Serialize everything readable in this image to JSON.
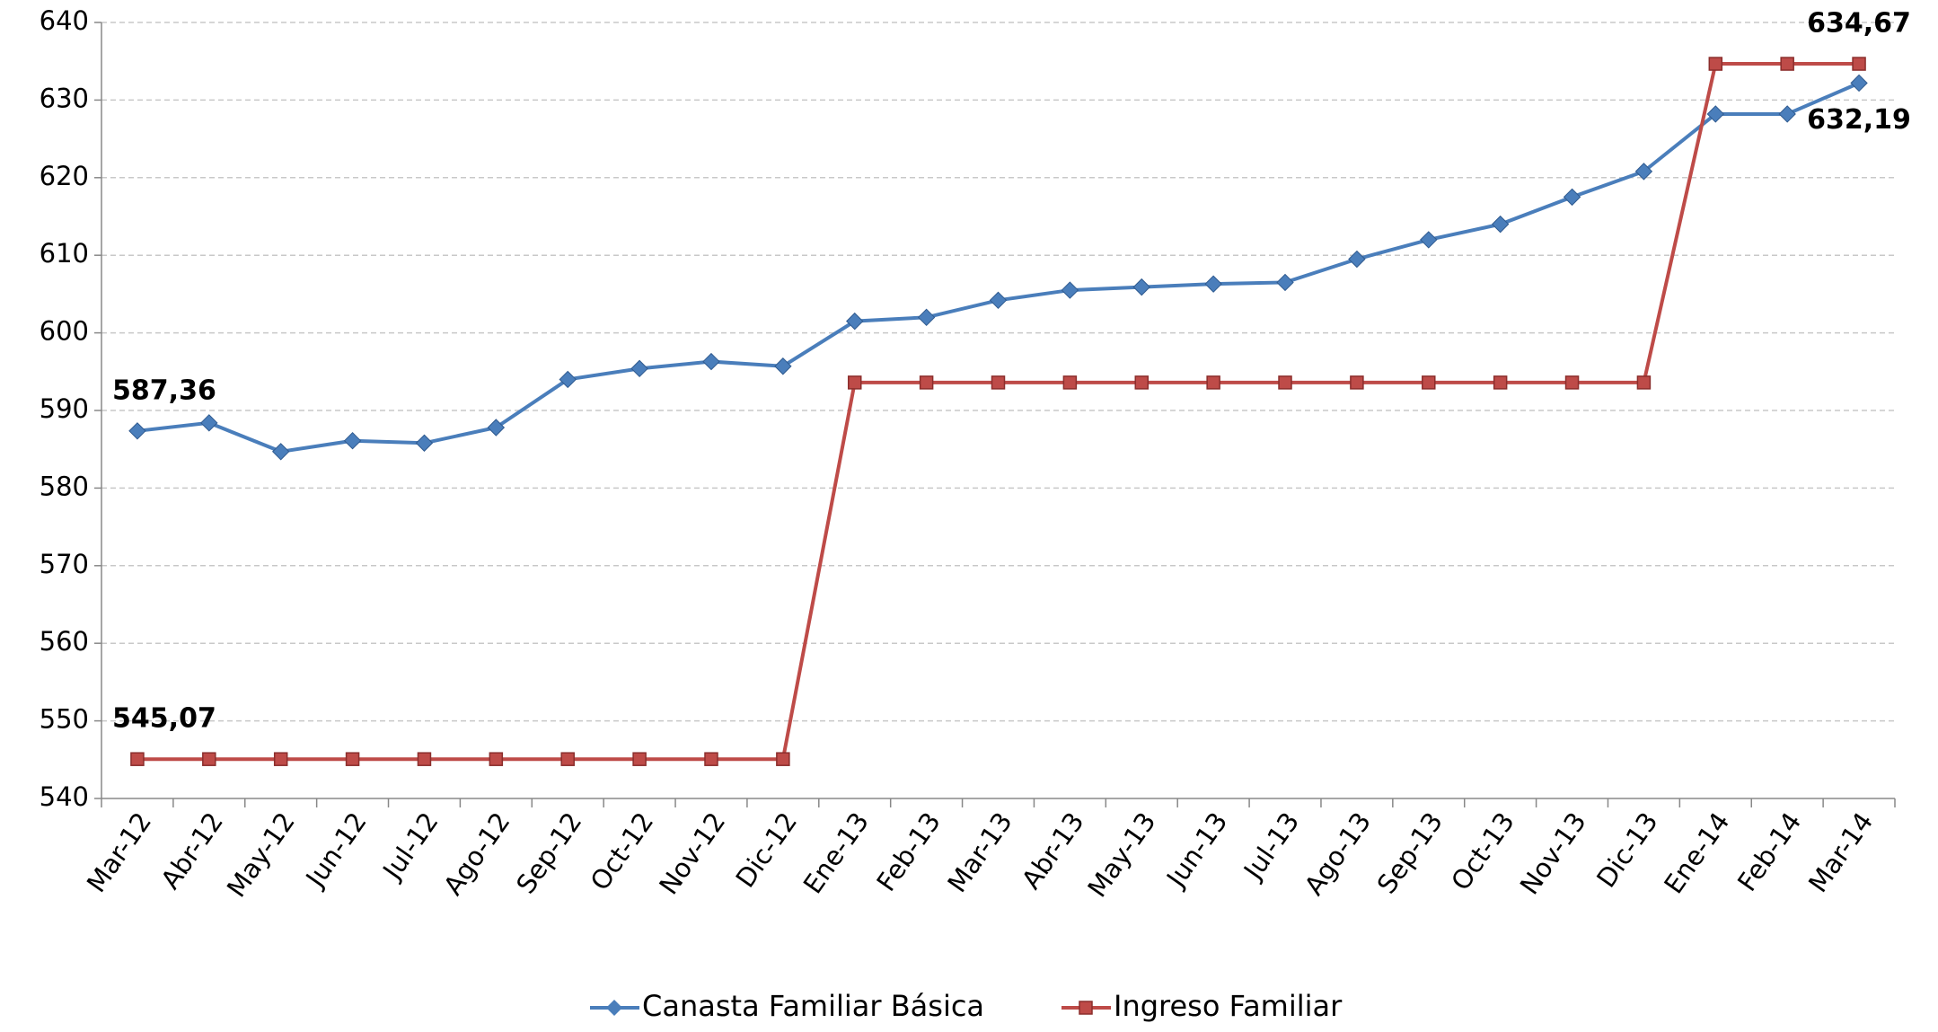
{
  "chart_data": {
    "type": "line",
    "categories": [
      "Mar-12",
      "Abr-12",
      "May-12",
      "Jun-12",
      "Jul-12",
      "Ago-12",
      "Sep-12",
      "Oct-12",
      "Nov-12",
      "Dic-12",
      "Ene-13",
      "Feb-13",
      "Mar-13",
      "Abr-13",
      "May-13",
      "Jun-13",
      "Jul-13",
      "Ago-13",
      "Sep-13",
      "Oct-13",
      "Nov-13",
      "Dic-13",
      "Ene-14",
      "Feb-14",
      "Mar-14"
    ],
    "series": [
      {
        "name": "Canasta Familiar Básica",
        "color": "#4a7ebb",
        "values": [
          587.36,
          588.4,
          584.7,
          586.1,
          585.8,
          587.8,
          594.0,
          595.4,
          596.3,
          595.7,
          601.5,
          602.0,
          604.2,
          605.5,
          605.9,
          606.3,
          606.5,
          609.5,
          612.0,
          614.0,
          617.5,
          620.8,
          628.2,
          628.2,
          632.19
        ],
        "value_labels": [
          "587,36",
          null,
          null,
          null,
          null,
          null,
          null,
          null,
          null,
          null,
          null,
          null,
          null,
          null,
          null,
          null,
          null,
          null,
          null,
          null,
          null,
          null,
          null,
          null,
          "632,19"
        ]
      },
      {
        "name": "Ingreso Familiar",
        "color": "#be4b48",
        "values": [
          545.07,
          545.07,
          545.07,
          545.07,
          545.07,
          545.07,
          545.07,
          545.07,
          545.07,
          545.07,
          593.6,
          593.6,
          593.6,
          593.6,
          593.6,
          593.6,
          593.6,
          593.6,
          593.6,
          593.6,
          593.6,
          593.6,
          634.67,
          634.67,
          634.67
        ],
        "value_labels": [
          "545,07",
          null,
          null,
          null,
          null,
          null,
          null,
          null,
          null,
          null,
          null,
          null,
          null,
          null,
          null,
          null,
          null,
          null,
          null,
          null,
          null,
          null,
          null,
          null,
          "634,67"
        ]
      }
    ],
    "ylim": [
      540,
      640
    ],
    "yticks": [
      540,
      550,
      560,
      570,
      580,
      590,
      600,
      610,
      620,
      630,
      640
    ],
    "grid": true,
    "legend": "bottom"
  }
}
